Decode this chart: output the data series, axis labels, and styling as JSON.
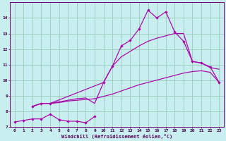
{
  "xlabel": "Windchill (Refroidissement éolien,°C)",
  "xlim": [
    -0.5,
    23.5
  ],
  "ylim": [
    7,
    15
  ],
  "yticks": [
    7,
    8,
    9,
    10,
    11,
    12,
    13,
    14
  ],
  "xticks": [
    0,
    1,
    2,
    3,
    4,
    5,
    6,
    7,
    8,
    9,
    10,
    11,
    12,
    13,
    14,
    15,
    16,
    17,
    18,
    19,
    20,
    21,
    22,
    23
  ],
  "bg_color": "#c8eef0",
  "line_color": "#aa00aa",
  "grid_color": "#99ccbb",
  "line1_marked": {
    "x": [
      0,
      1,
      2,
      3,
      4,
      5,
      6,
      7,
      8,
      9
    ],
    "y": [
      7.3,
      7.4,
      7.5,
      7.5,
      7.8,
      7.45,
      7.35,
      7.35,
      7.25,
      7.65
    ]
  },
  "line2_smooth_low": {
    "x": [
      2,
      3,
      4,
      5,
      6,
      7,
      8,
      9,
      10,
      11,
      12,
      13,
      14,
      15,
      16,
      17,
      18,
      19,
      20,
      21,
      22,
      23
    ],
    "y": [
      8.3,
      8.5,
      8.5,
      8.55,
      8.65,
      8.7,
      8.75,
      8.8,
      8.95,
      9.1,
      9.3,
      9.5,
      9.7,
      9.85,
      10.0,
      10.15,
      10.3,
      10.45,
      10.55,
      10.6,
      10.5,
      9.85
    ]
  },
  "line3_smooth_high": {
    "x": [
      2,
      3,
      4,
      5,
      6,
      7,
      8,
      9,
      10,
      11,
      12,
      13,
      14,
      15,
      16,
      17,
      18,
      19,
      20,
      21,
      22,
      23
    ],
    "y": [
      8.3,
      8.5,
      8.5,
      8.6,
      8.7,
      8.8,
      8.85,
      8.5,
      9.85,
      10.9,
      11.5,
      11.85,
      12.2,
      12.5,
      12.7,
      12.85,
      13.0,
      13.0,
      11.2,
      11.1,
      10.8,
      10.7
    ]
  },
  "line4_marked": {
    "x": [
      2,
      3,
      4,
      10,
      11,
      12,
      13,
      14,
      15,
      16,
      17,
      18,
      19,
      20,
      21,
      22,
      23
    ],
    "y": [
      8.3,
      8.5,
      8.5,
      9.85,
      10.9,
      12.2,
      12.55,
      13.3,
      14.5,
      14.0,
      14.4,
      13.1,
      12.5,
      11.2,
      11.1,
      10.85,
      9.85
    ]
  }
}
